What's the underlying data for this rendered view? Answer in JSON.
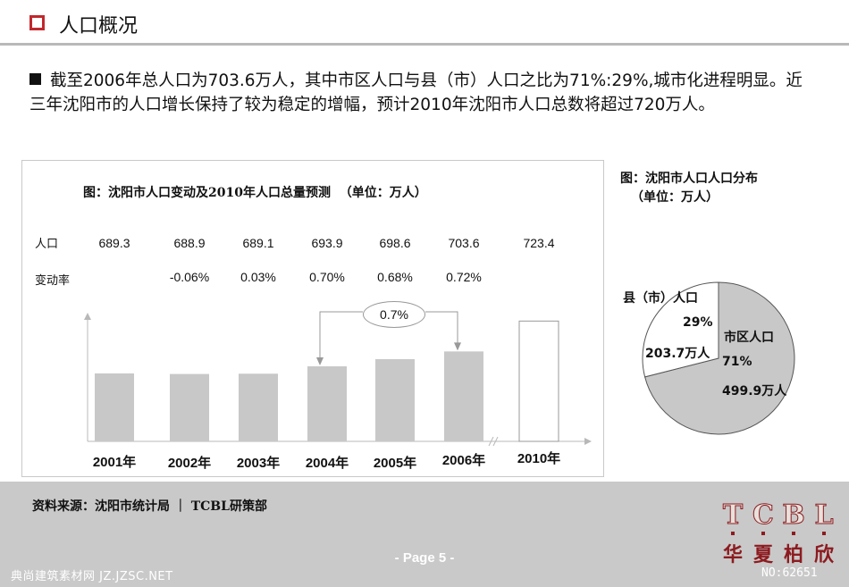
{
  "header": {
    "title": "人口概况"
  },
  "intro": {
    "text": "截至2006年总人口为703.6万人，其中市区人口与县（市）人口之比为71%:29%,城市化进程明显。近三年沈阳市的人口增长保持了较为稳定的增幅，预计2010年沈阳市人口总数将超过720万人。"
  },
  "bar_chart": {
    "title": "图：沈阳市人口变动及2010年人口总量预测  （单位：万人）",
    "population_label": "人口",
    "rate_label": "变动率",
    "population_values": [
      "689.3",
      "688.9",
      "689.1",
      "693.9",
      "698.6",
      "703.6",
      "723.4"
    ],
    "rate_values": [
      "",
      "-0.06%",
      "0.03%",
      "0.70%",
      "0.68%",
      "0.72%",
      ""
    ],
    "callout": "0.7%",
    "years": [
      "2001年",
      "2002年",
      "2003年",
      "2004年",
      "2005年",
      "2006年",
      "2010年"
    ]
  },
  "pie_chart": {
    "title_line1": "图：沈阳市人口人口分布",
    "title_line2": "（单位：万人）",
    "county_label": "县（市）人口",
    "county_pct": "29%",
    "county_value": "203.7万人",
    "urban_label": "市区人口",
    "urban_pct": "71%",
    "urban_value": "499.9万人"
  },
  "footer": {
    "source": "资料来源：沈阳市统计局 ｜ TCBL研策部",
    "page": "- Page 5 -",
    "watermark_left": "典尚建筑素材网 JZ.JZSC.NET",
    "watermark_right": "NO:62651"
  },
  "logo": {
    "letters": [
      "T",
      "C",
      "B",
      "L"
    ],
    "chars": [
      "华",
      "夏",
      "柏",
      "欣"
    ],
    "accent": "#8c1b20"
  },
  "colors": {
    "accent": "#c0282c",
    "bar_fill": "#c8c8c8",
    "footer_bg": "#c9c9c9"
  },
  "chart_data": [
    {
      "type": "bar",
      "title": "图：沈阳市人口变动及2010年人口总量预测  （单位：万人）",
      "categories": [
        "2001年",
        "2002年",
        "2003年",
        "2004年",
        "2005年",
        "2006年",
        "2010年"
      ],
      "values": [
        689.3,
        688.9,
        689.1,
        693.9,
        698.6,
        703.6,
        723.4
      ],
      "change_rate": [
        null,
        -0.06,
        0.03,
        0.7,
        0.68,
        0.72,
        null
      ],
      "forecast": [
        false,
        false,
        false,
        false,
        false,
        false,
        true
      ],
      "annotation": "0.7%"
    },
    {
      "type": "pie",
      "title": "图：沈阳市人口人口分布（单位：万人）",
      "labels": [
        "市区人口",
        "县（市）人口"
      ],
      "values": [
        499.9,
        203.7
      ],
      "percent": [
        71,
        29
      ]
    }
  ]
}
